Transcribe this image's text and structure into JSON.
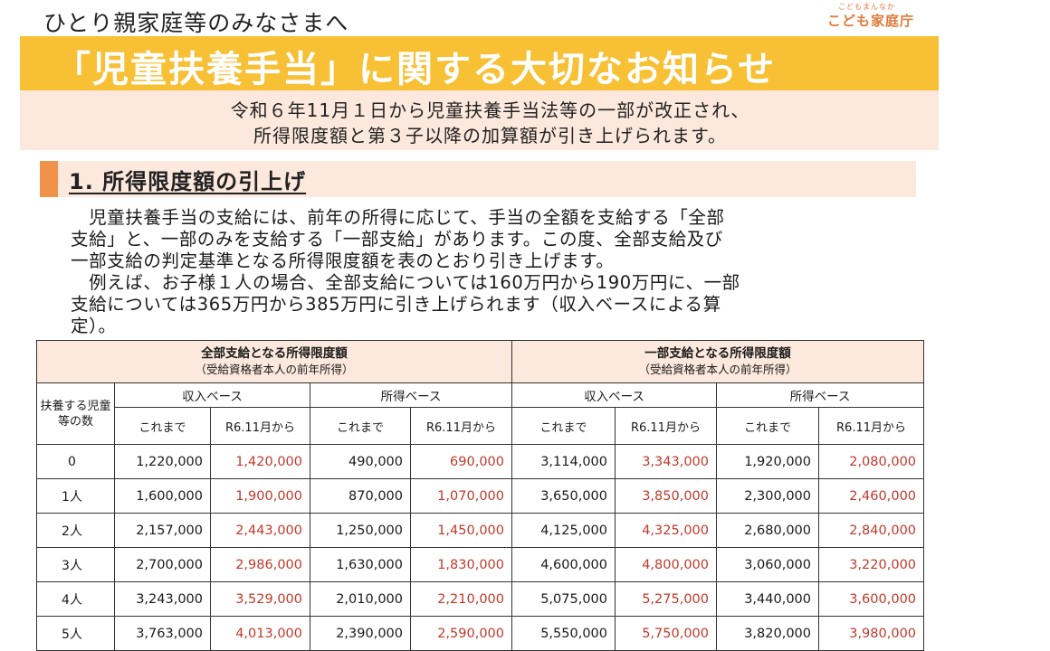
{
  "header": {
    "audience": "ひとり親家庭等のみなさまへ",
    "logo_small": "こどもまんなか",
    "logo_main": "こども家庭庁"
  },
  "title": "「児童扶養手当」に関する大切なお知らせ",
  "subtitle": {
    "line1": "令和６年11月１日から児童扶養手当法等の一部が改正され、",
    "line2": "所得限度額と第３子以降の加算額が引き上げられます。"
  },
  "section": {
    "heading": "1. 所得限度額の引上げ",
    "para_lines": [
      "　児童扶養手当の支給には、前年の所得に応じて、手当の全額を支給する「全部",
      "支給」と、一部のみを支給する「一部支給」があります。この度、全部支給及び",
      "一部支給の判定基準となる所得限度額を表のとおり引き上げます。",
      "　例えば、お子様１人の場合、全部支給については160万円から190万円に、一部",
      "支給については365万円から385万円に引き上げられます（収入ベースによる算",
      "定）。"
    ]
  },
  "table": {
    "group_full_title": "全部支給となる所得限度額",
    "group_full_sub": "（受給資格者本人の前年所得）",
    "group_partial_title": "一部支給となる所得限度額",
    "group_partial_sub": "（受給資格者本人の前年所得）",
    "row_header": "扶養する児童等の数",
    "income_base": "収入ベース",
    "earnings_base": "所得ベース",
    "col_before": "これまで",
    "col_after": "R6.11月から",
    "rows": [
      {
        "count": "0",
        "values": [
          "1,220,000",
          "1,420,000",
          "490,000",
          "690,000",
          "3,114,000",
          "3,343,000",
          "1,920,000",
          "2,080,000"
        ]
      },
      {
        "count": "1人",
        "values": [
          "1,600,000",
          "1,900,000",
          "870,000",
          "1,070,000",
          "3,650,000",
          "3,850,000",
          "2,300,000",
          "2,460,000"
        ]
      },
      {
        "count": "2人",
        "values": [
          "2,157,000",
          "2,443,000",
          "1,250,000",
          "1,450,000",
          "4,125,000",
          "4,325,000",
          "2,680,000",
          "2,840,000"
        ]
      },
      {
        "count": "3人",
        "values": [
          "2,700,000",
          "2,986,000",
          "1,630,000",
          "1,830,000",
          "4,600,000",
          "4,800,000",
          "3,060,000",
          "3,220,000"
        ]
      },
      {
        "count": "4人",
        "values": [
          "3,243,000",
          "3,529,000",
          "2,010,000",
          "2,210,000",
          "5,075,000",
          "5,275,000",
          "3,440,000",
          "3,600,000"
        ]
      },
      {
        "count": "5人",
        "values": [
          "3,763,000",
          "4,013,000",
          "2,390,000",
          "2,590,000",
          "5,550,000",
          "5,750,000",
          "3,820,000",
          "3,980,000"
        ]
      }
    ]
  }
}
